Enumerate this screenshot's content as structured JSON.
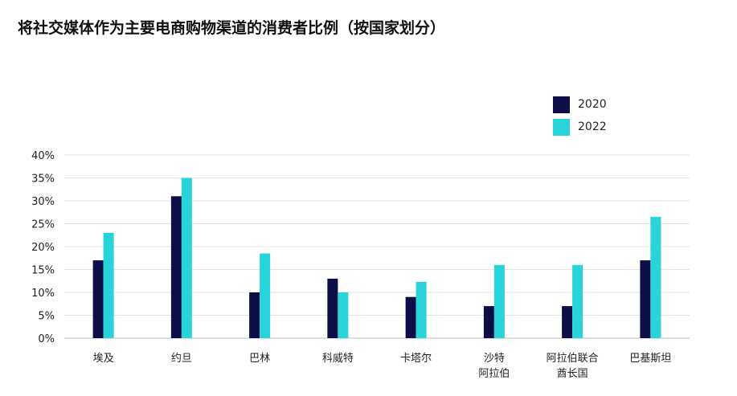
{
  "title": "将社交媒体作为主要电商购物渠道的消费者比例（按国家划分）",
  "colors": {
    "2020": "#0b0f45",
    "2022": "#29d3da",
    "grid": "#e2e2e2",
    "axis": "#bdbdbd"
  },
  "chart_data": {
    "type": "bar",
    "title": "将社交媒体作为主要电商购物渠道的消费者比例（按国家划分）",
    "categories": [
      [
        "埃及"
      ],
      [
        "约旦"
      ],
      [
        "巴林"
      ],
      [
        "科威特"
      ],
      [
        "卡塔尔"
      ],
      [
        "沙特",
        "阿拉伯"
      ],
      [
        "阿拉伯联合",
        "酋长国"
      ],
      [
        "巴基斯坦"
      ]
    ],
    "series": [
      {
        "name": "2020",
        "values": [
          17,
          31,
          10,
          13,
          9,
          7,
          7,
          17
        ]
      },
      {
        "name": "2022",
        "values": [
          23,
          35,
          18.5,
          10,
          12.3,
          16,
          16,
          26.5
        ]
      }
    ],
    "ylim": [
      0,
      40
    ],
    "yticks": [
      0,
      5,
      10,
      15,
      20,
      25,
      30,
      35,
      40
    ],
    "ytick_labels": [
      "0%",
      "5%",
      "10%",
      "15%",
      "20%",
      "25%",
      "30%",
      "35%",
      "40%"
    ],
    "xlabel": "",
    "ylabel": "",
    "grid": true,
    "legend_position": "top-right"
  }
}
